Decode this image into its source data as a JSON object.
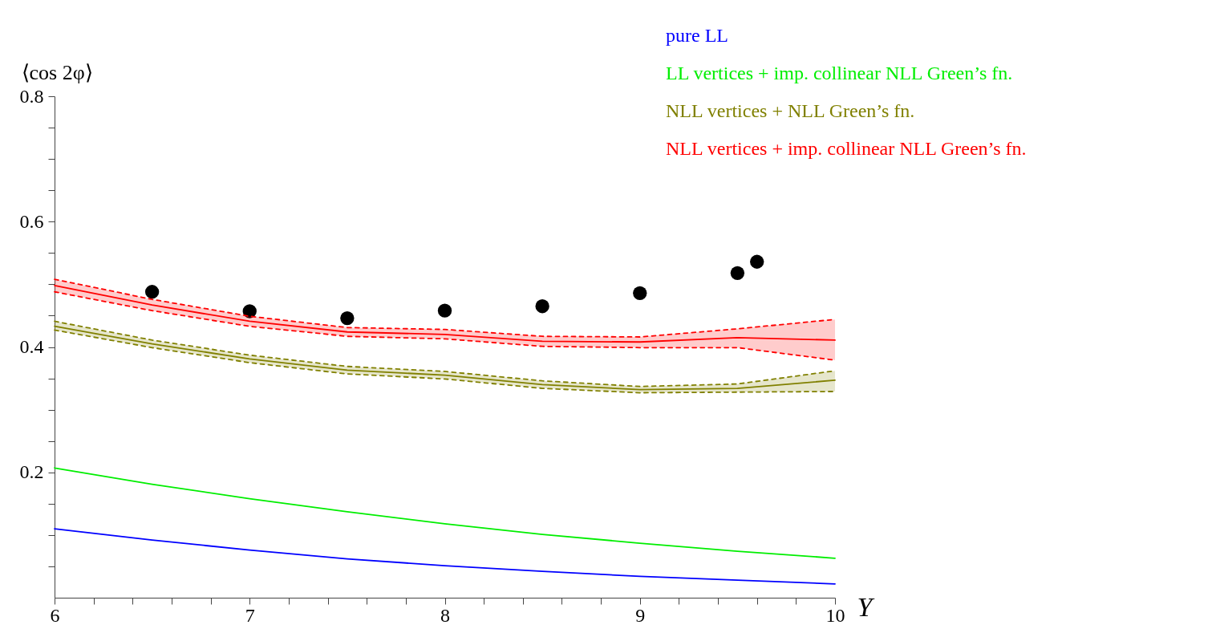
{
  "chart_data": {
    "type": "line",
    "xlabel": "Y",
    "ylabel": "⟨cos 2φ⟩",
    "xlim": [
      6,
      10
    ],
    "ylim": [
      0,
      0.8
    ],
    "xticks": [
      6,
      {
        "value": 6.2,
        "label": null
      },
      {
        "value": 6.4,
        "label": null
      },
      {
        "value": 6.6,
        "label": null
      },
      {
        "value": 6.8,
        "label": null
      },
      7,
      {
        "value": 7.2,
        "label": null
      },
      {
        "value": 7.4,
        "label": null
      },
      {
        "value": 7.6,
        "label": null
      },
      {
        "value": 7.8,
        "label": null
      },
      8,
      {
        "value": 8.2,
        "label": null
      },
      {
        "value": 8.4,
        "label": null
      },
      {
        "value": 8.6,
        "label": null
      },
      {
        "value": 8.8,
        "label": null
      },
      9,
      {
        "value": 9.2,
        "label": null
      },
      {
        "value": 9.4,
        "label": null
      },
      {
        "value": 9.6,
        "label": null
      },
      {
        "value": 9.8,
        "label": null
      },
      10
    ],
    "yticks": [
      {
        "value": 0.05,
        "label": null
      },
      {
        "value": 0.1,
        "label": null
      },
      {
        "value": 0.15,
        "label": null
      },
      0.2,
      {
        "value": 0.25,
        "label": null
      },
      {
        "value": 0.3,
        "label": null
      },
      {
        "value": 0.35,
        "label": null
      },
      0.4,
      {
        "value": 0.45,
        "label": null
      },
      {
        "value": 0.5,
        "label": null
      },
      {
        "value": 0.55,
        "label": null
      },
      0.6,
      {
        "value": 0.65,
        "label": null
      },
      {
        "value": 0.7,
        "label": null
      },
      {
        "value": 0.75,
        "label": null
      },
      0.8
    ],
    "x": [
      6,
      6.5,
      7,
      7.5,
      8,
      8.5,
      9,
      9.5,
      10
    ],
    "legend": "top right",
    "grid": false,
    "series": [
      {
        "name": "pure LL",
        "color": "#0000ff",
        "values": [
          0.11,
          0.092,
          0.076,
          0.062,
          0.051,
          0.042,
          0.034,
          0.028,
          0.022
        ]
      },
      {
        "name": "LL vertices + imp. collinear NLL Green’s fn.",
        "color": "#00ee00",
        "values": [
          0.207,
          0.181,
          0.158,
          0.137,
          0.118,
          0.101,
          0.087,
          0.074,
          0.063
        ]
      },
      {
        "name": "NLL vertices + NLL Green’s fn.",
        "color": "#808000",
        "values": [
          0.433,
          0.405,
          0.381,
          0.363,
          0.355,
          0.34,
          0.332,
          0.334,
          0.347
        ],
        "lower": [
          0.427,
          0.399,
          0.375,
          0.357,
          0.349,
          0.334,
          0.327,
          0.328,
          0.329
        ],
        "upper": [
          0.441,
          0.411,
          0.387,
          0.369,
          0.361,
          0.346,
          0.337,
          0.341,
          0.362
        ]
      },
      {
        "name": "NLL vertices + imp. collinear NLL Green’s fn.",
        "color": "#ff0000",
        "values": [
          0.498,
          0.467,
          0.441,
          0.424,
          0.42,
          0.409,
          0.408,
          0.415,
          0.411
        ],
        "lower": [
          0.488,
          0.458,
          0.433,
          0.417,
          0.413,
          0.401,
          0.399,
          0.399,
          0.379
        ],
        "upper": [
          0.508,
          0.476,
          0.449,
          0.431,
          0.428,
          0.417,
          0.416,
          0.429,
          0.444
        ]
      },
      {
        "color": "#808000",
        "line_style": "dashed",
        "values": [
          0.427,
          0.399,
          0.375,
          0.357,
          0.349,
          0.334,
          0.327,
          0.328,
          0.329
        ]
      },
      {
        "color": "#808000",
        "line_style": "dashed",
        "values": [
          0.441,
          0.411,
          0.387,
          0.369,
          0.361,
          0.346,
          0.337,
          0.341,
          0.362
        ]
      },
      {
        "color": "#ff0000",
        "line_style": "dashed",
        "values": [
          0.488,
          0.458,
          0.433,
          0.417,
          0.413,
          0.401,
          0.399,
          0.399,
          0.379
        ]
      },
      {
        "color": "#ff0000",
        "line_style": "dashed",
        "values": [
          0.508,
          0.476,
          0.449,
          0.431,
          0.428,
          0.417,
          0.416,
          0.429,
          0.444
        ]
      },
      {
        "type": "scatter",
        "color": "#000000",
        "x": [
          6.5,
          7,
          7.5,
          8,
          8.5,
          9,
          9.5,
          9.6
        ],
        "values": [
          0.488,
          0.457,
          0.446,
          0.458,
          0.465,
          0.486,
          0.518,
          0.536
        ]
      }
    ]
  }
}
